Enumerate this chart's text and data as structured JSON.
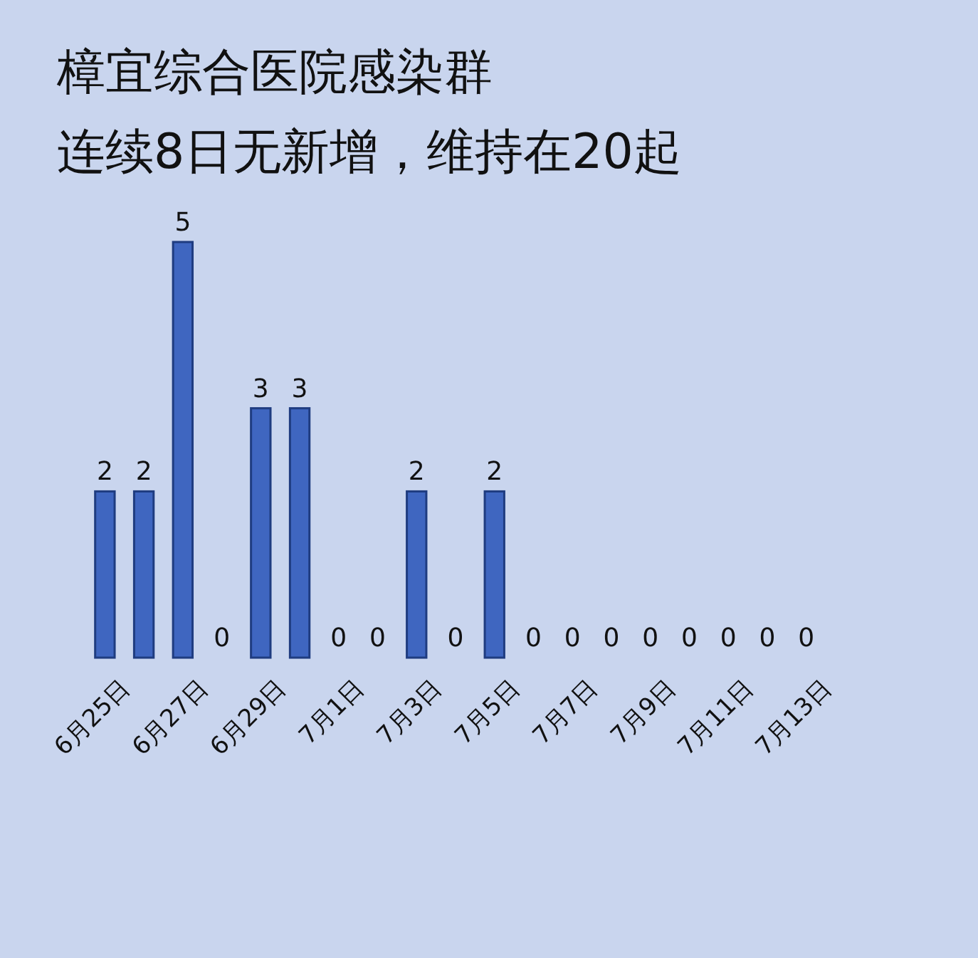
{
  "chart_data": {
    "type": "bar",
    "title": "樟宜综合医院感染群",
    "subtitle": "连续8日无新增，维持在20起",
    "categories": [
      "6月25日",
      null,
      "6月27日",
      null,
      "6月29日",
      null,
      "7月1日",
      null,
      "7月3日",
      null,
      "7月5日",
      null,
      "7月7日",
      null,
      "7月9日",
      null,
      "7月11日",
      null,
      "7月13日"
    ],
    "values": [
      2,
      2,
      5,
      0,
      3,
      3,
      0,
      0,
      2,
      0,
      2,
      0,
      0,
      0,
      0,
      0,
      0,
      0,
      0
    ],
    "color": "#3f66c0",
    "data_labels": true
  }
}
